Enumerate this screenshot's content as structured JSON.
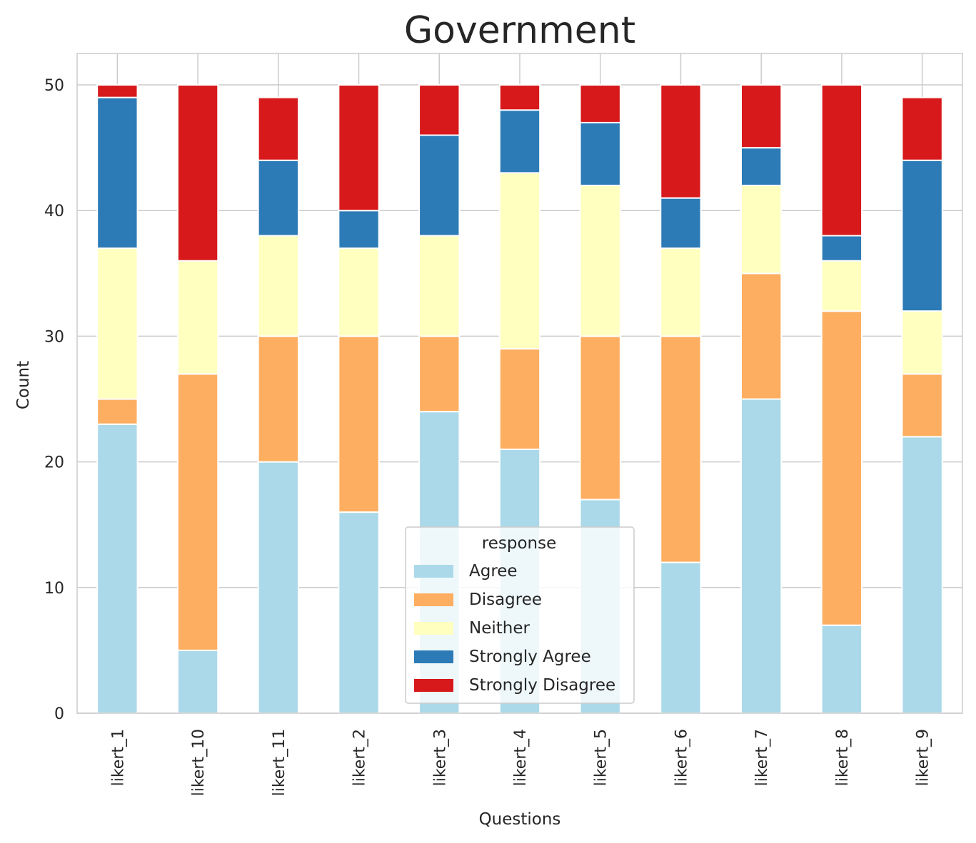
{
  "chart_data": {
    "type": "bar",
    "stacked": true,
    "title": "Government",
    "xlabel": "Questions",
    "ylabel": "Count",
    "ylim": [
      0,
      52.5
    ],
    "yticks": [
      0,
      10,
      20,
      30,
      40,
      50
    ],
    "grid": true,
    "legend_title": "response",
    "legend_position": "lower-center",
    "categories": [
      "likert_1",
      "likert_10",
      "likert_11",
      "likert_2",
      "likert_3",
      "likert_4",
      "likert_5",
      "likert_6",
      "likert_7",
      "likert_8",
      "likert_9"
    ],
    "series": [
      {
        "name": "Agree",
        "color": "#abd9e9",
        "values": [
          23,
          5,
          20,
          16,
          24,
          21,
          17,
          12,
          25,
          7,
          22
        ]
      },
      {
        "name": "Disagree",
        "color": "#fdae61",
        "values": [
          2,
          22,
          10,
          14,
          6,
          8,
          13,
          18,
          10,
          25,
          5
        ]
      },
      {
        "name": "Neither",
        "color": "#ffffbf",
        "values": [
          12,
          9,
          8,
          7,
          8,
          14,
          12,
          7,
          7,
          4,
          5
        ]
      },
      {
        "name": "Strongly Agree",
        "color": "#2c7bb6",
        "values": [
          12,
          0,
          6,
          3,
          8,
          5,
          5,
          4,
          3,
          2,
          12
        ]
      },
      {
        "name": "Strongly Disagree",
        "color": "#d7191c",
        "values": [
          1,
          14,
          5,
          10,
          4,
          2,
          3,
          9,
          5,
          12,
          5
        ]
      }
    ]
  }
}
